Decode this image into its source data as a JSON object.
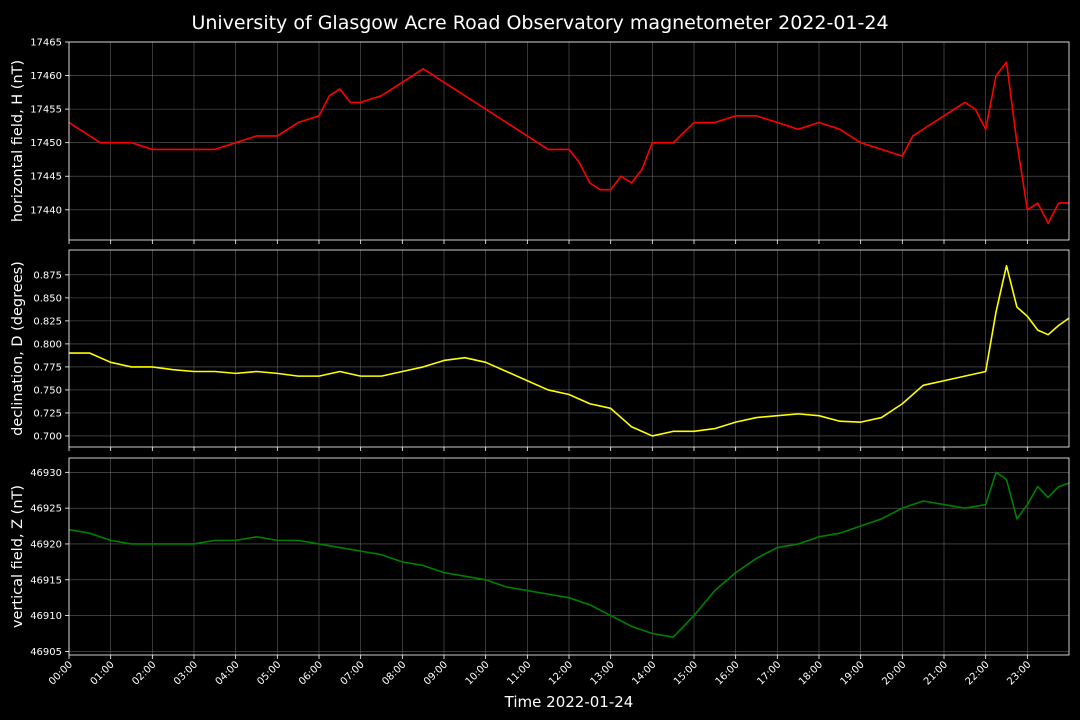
{
  "chart_data": {
    "type": "line",
    "title": "University of Glasgow Acre Road Observatory magnetometer 2022-01-24",
    "xlabel": "Time 2022-01-24",
    "x_ticks": [
      "00:00",
      "01:00",
      "02:00",
      "03:00",
      "04:00",
      "05:00",
      "06:00",
      "07:00",
      "08:00",
      "09:00",
      "10:00",
      "11:00",
      "12:00",
      "13:00",
      "14:00",
      "15:00",
      "16:00",
      "17:00",
      "18:00",
      "19:00",
      "20:00",
      "21:00",
      "22:00",
      "23:00"
    ],
    "x_range_hours": [
      0,
      24
    ],
    "grid": true,
    "panels": [
      {
        "ylabel": "horizontal field, H (nT)",
        "color": "#ff0000",
        "ylim": [
          17435.5,
          17465
        ],
        "yticks": [
          "17440",
          "17445",
          "17450",
          "17455",
          "17460",
          "17465"
        ],
        "ytick_values": [
          17440,
          17445,
          17450,
          17455,
          17460,
          17465
        ],
        "x": [
          0,
          0.25,
          0.5,
          0.75,
          1,
          1.5,
          2,
          2.5,
          3,
          3.5,
          4,
          4.5,
          5,
          5.5,
          6,
          6.25,
          6.5,
          6.75,
          7,
          7.5,
          8,
          8.25,
          8.5,
          8.75,
          9,
          9.5,
          10,
          10.5,
          11,
          11.5,
          12,
          12.25,
          12.5,
          12.75,
          13,
          13.25,
          13.5,
          13.75,
          14,
          14.5,
          15,
          15.5,
          16,
          16.5,
          17,
          17.5,
          18,
          18.5,
          19,
          19.5,
          20,
          20.25,
          20.5,
          21,
          21.5,
          21.75,
          22,
          22.25,
          22.5,
          22.75,
          23,
          23.25,
          23.5,
          23.75,
          24
        ],
        "values": [
          17453,
          17452,
          17451,
          17450,
          17450,
          17450,
          17449,
          17449,
          17449,
          17449,
          17450,
          17451,
          17451,
          17453,
          17454,
          17457,
          17458,
          17456,
          17456,
          17457,
          17459,
          17460,
          17461,
          17460,
          17459,
          17457,
          17455,
          17453,
          17451,
          17449,
          17449,
          17447,
          17444,
          17443,
          17443,
          17445,
          17444,
          17446,
          17450,
          17450,
          17453,
          17453,
          17454,
          17454,
          17453,
          17452,
          17453,
          17452,
          17450,
          17449,
          17448,
          17451,
          17452,
          17454,
          17456,
          17455,
          17452,
          17460,
          17462,
          17450,
          17440,
          17441,
          17438,
          17441,
          17441
        ]
      },
      {
        "ylabel": "declination, D (degrees)",
        "color": "#ffff00",
        "ylim": [
          0.688,
          0.902
        ],
        "yticks": [
          "0.700",
          "0.725",
          "0.750",
          "0.775",
          "0.800",
          "0.825",
          "0.850",
          "0.875"
        ],
        "ytick_values": [
          0.7,
          0.725,
          0.75,
          0.775,
          0.8,
          0.825,
          0.85,
          0.875
        ],
        "x": [
          0,
          0.5,
          1,
          1.5,
          2,
          2.5,
          3,
          3.5,
          4,
          4.5,
          5,
          5.5,
          6,
          6.5,
          7,
          7.5,
          8,
          8.5,
          9,
          9.5,
          10,
          10.5,
          11,
          11.5,
          12,
          12.5,
          13,
          13.25,
          13.5,
          13.75,
          14,
          14.5,
          15,
          15.5,
          16,
          16.5,
          17,
          17.5,
          18,
          18.5,
          19,
          19.5,
          20,
          20.5,
          21,
          21.5,
          22,
          22.25,
          22.5,
          22.75,
          23,
          23.25,
          23.5,
          23.75,
          24
        ],
        "values": [
          0.79,
          0.79,
          0.78,
          0.775,
          0.775,
          0.772,
          0.77,
          0.77,
          0.768,
          0.77,
          0.768,
          0.765,
          0.765,
          0.77,
          0.765,
          0.765,
          0.77,
          0.775,
          0.782,
          0.785,
          0.78,
          0.77,
          0.76,
          0.75,
          0.745,
          0.735,
          0.73,
          0.72,
          0.71,
          0.705,
          0.7,
          0.705,
          0.705,
          0.708,
          0.715,
          0.72,
          0.722,
          0.724,
          0.722,
          0.716,
          0.715,
          0.72,
          0.735,
          0.755,
          0.76,
          0.765,
          0.77,
          0.835,
          0.885,
          0.84,
          0.83,
          0.815,
          0.81,
          0.82,
          0.828
        ]
      },
      {
        "ylabel": "vertical field, Z (nT)",
        "color": "#008000",
        "ylim": [
          46904.5,
          46932
        ],
        "yticks": [
          "46905",
          "46910",
          "46915",
          "46920",
          "46925",
          "46930"
        ],
        "ytick_values": [
          46905,
          46910,
          46915,
          46920,
          46925,
          46930
        ],
        "x": [
          0,
          0.5,
          1,
          1.5,
          2,
          2.5,
          3,
          3.5,
          4,
          4.5,
          5,
          5.5,
          6,
          6.5,
          7,
          7.5,
          8,
          8.5,
          9,
          9.5,
          10,
          10.5,
          11,
          11.5,
          12,
          12.5,
          13,
          13.5,
          14,
          14.5,
          15,
          15.5,
          16,
          16.5,
          17,
          17.5,
          18,
          18.5,
          19,
          19.5,
          20,
          20.5,
          21,
          21.5,
          22,
          22.25,
          22.5,
          22.75,
          23,
          23.25,
          23.5,
          23.75,
          24
        ],
        "values": [
          46922,
          46921.5,
          46920.5,
          46920,
          46920,
          46920,
          46920,
          46920.5,
          46920.5,
          46921,
          46920.5,
          46920.5,
          46920,
          46919.5,
          46919,
          46918.5,
          46917.5,
          46917,
          46916,
          46915.5,
          46915,
          46914,
          46913.5,
          46913,
          46912.5,
          46911.5,
          46910,
          46908.5,
          46907.5,
          46907,
          46910,
          46913.5,
          46916,
          46918,
          46919.5,
          46920,
          46921,
          46921.5,
          46922.5,
          46923.5,
          46925,
          46926,
          46925.5,
          46925,
          46925.5,
          46930,
          46929,
          46923.5,
          46925.5,
          46928,
          46926.5,
          46928,
          46928.5
        ]
      }
    ]
  }
}
